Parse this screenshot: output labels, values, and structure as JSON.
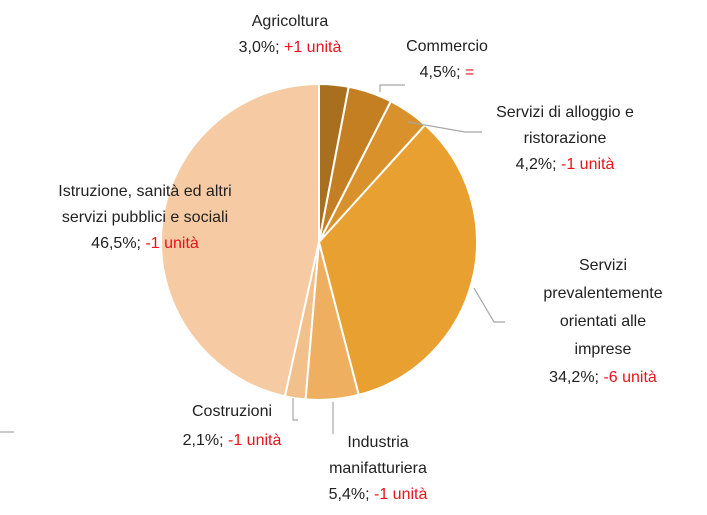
{
  "chart_data": {
    "type": "pie",
    "categories": [
      "Agricoltura",
      "Commercio",
      "Servizi di alloggio e\nristorazione",
      "Servizi\nprevalentemente\norientati alle imprese",
      "Industria\nmanifatturiera",
      "Costruzioni",
      "Istruzione, sanità ed altri\nservizi pubblici e sociali"
    ],
    "values": [
      3.0,
      4.5,
      4.2,
      34.2,
      5.4,
      2.1,
      46.5
    ],
    "value_labels": [
      "3,0%;",
      "4,5%;",
      "4,2%;",
      "34,2%;",
      "5,4%;",
      "2,1%;",
      "46,5%;"
    ],
    "changes": [
      "+1 unità",
      "=",
      "-1 unità",
      "-6 unità",
      "-1 unità",
      "-1 unità",
      "-1 unità"
    ],
    "colors": [
      "#a86f1e",
      "#c47f22",
      "#d9922b",
      "#e8a030",
      "#eeb060",
      "#f2c08a",
      "#f6cba3"
    ],
    "change_color": "#e8141c"
  }
}
